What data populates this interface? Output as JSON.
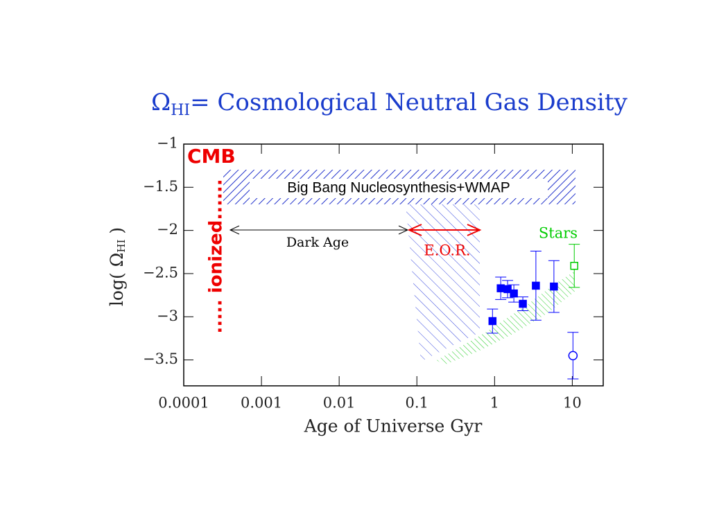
{
  "chart_data": {
    "type": "scatter",
    "title": {
      "symbol": "Ω",
      "subscript": "HI",
      "text": "= Cosmological Neutral Gas Density"
    },
    "x_label": "Age of Universe  Gyr",
    "y_label": {
      "prefix": "log( Ω",
      "subscript": "HI",
      "suffix": " )"
    },
    "annotations": [
      "CMB",
      "..... ionized......",
      "Big Bang Nucleosynthesis+WMAP",
      "Dark Age",
      "E.O.R.",
      "Stars"
    ],
    "log_x": true,
    "xlim": [
      0.0001,
      25
    ],
    "ylim": [
      -3.8,
      -1
    ],
    "xticks": [
      0.0001,
      0.001,
      0.01,
      0.1,
      1,
      10
    ],
    "yticks": [
      {
        "value": -1,
        "label": "−1"
      },
      {
        "value": -1.5,
        "label": "−1.5"
      },
      {
        "value": -2,
        "label": "−2"
      },
      {
        "value": -2.5,
        "label": "−2.5"
      },
      {
        "value": -3,
        "label": "−3"
      },
      {
        "value": -3.5,
        "label": "−3.5"
      }
    ],
    "series": [
      {
        "color": "#0000ff",
        "marker": "filled-square",
        "x": [
          0.94,
          1.2,
          1.47,
          1.77,
          2.31,
          3.4,
          5.8
        ],
        "values": [
          -3.05,
          -2.67,
          -2.68,
          -2.73,
          -2.85,
          -2.64,
          -2.65
        ],
        "errors": [
          0.14,
          0.13,
          0.1,
          0.1,
          0.08,
          0.4,
          0.3
        ]
      },
      {
        "color": "#00cc00",
        "marker": "open-square",
        "x": [
          10.6
        ],
        "values": [
          -2.41
        ],
        "errors": [
          0.25
        ]
      },
      {
        "color": "#0000ff",
        "marker": "open-circle",
        "x": [
          10.2
        ],
        "values": [
          -3.45
        ],
        "errors": [
          0.27
        ]
      }
    ]
  }
}
